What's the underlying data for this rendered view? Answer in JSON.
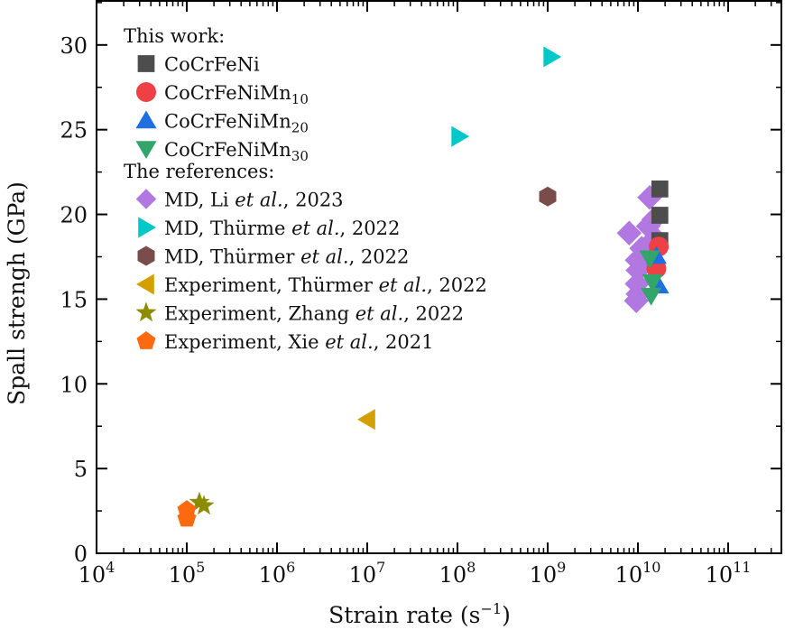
{
  "chart_data": {
    "type": "scatter",
    "title": "",
    "xlabel": "Strain rate (s",
    "xlabel_sup": "−1",
    "xlabel_end": ")",
    "ylabel": "Spall strengh (GPa)",
    "xscale": "log",
    "xlim_log10": [
      4,
      11.59
    ],
    "ylim": [
      0,
      32.6
    ],
    "x_ticks": [
      {
        "base": "10",
        "exp": "4"
      },
      {
        "base": "10",
        "exp": "5"
      },
      {
        "base": "10",
        "exp": "6"
      },
      {
        "base": "10",
        "exp": "7"
      },
      {
        "base": "10",
        "exp": "8"
      },
      {
        "base": "10",
        "exp": "9"
      },
      {
        "base": "10",
        "exp": "10"
      },
      {
        "base": "10",
        "exp": "11"
      }
    ],
    "y_ticks": [
      "0",
      "5",
      "10",
      "15",
      "20",
      "25",
      "30"
    ],
    "grid": false,
    "legend": {
      "placement": "top-left",
      "group_headers": [
        "This work:",
        "The references:"
      ],
      "entries": [
        {
          "group": 0,
          "marker": "square",
          "color": "#4d4d4d",
          "parts": [
            {
              "t": "CoCrFeNi"
            }
          ]
        },
        {
          "group": 0,
          "marker": "circle",
          "color": "#ef4046",
          "parts": [
            {
              "t": "CoCrFeNiMn"
            },
            {
              "t": "10",
              "sub": true
            }
          ]
        },
        {
          "group": 0,
          "marker": "triangle-up",
          "color": "#1f6fe0",
          "parts": [
            {
              "t": "CoCrFeNiMn"
            },
            {
              "t": "20",
              "sub": true
            }
          ]
        },
        {
          "group": 0,
          "marker": "triangle-down",
          "color": "#33a56b",
          "parts": [
            {
              "t": "CoCrFeNiMn"
            },
            {
              "t": "30",
              "sub": true
            }
          ]
        },
        {
          "group": 1,
          "marker": "diamond",
          "color": "#b078e0",
          "parts": [
            {
              "t": "MD, Li "
            },
            {
              "t": "et al.",
              "it": true
            },
            {
              "t": ", 2023"
            }
          ]
        },
        {
          "group": 1,
          "marker": "triangle-right",
          "color": "#00c8c8",
          "parts": [
            {
              "t": "MD, Thürme "
            },
            {
              "t": "et al.",
              "it": true
            },
            {
              "t": ", 2022"
            }
          ]
        },
        {
          "group": 1,
          "marker": "hexagon",
          "color": "#7a4c4c",
          "parts": [
            {
              "t": "MD, Thürmer "
            },
            {
              "t": "et al.",
              "it": true
            },
            {
              "t": ", 2022"
            }
          ]
        },
        {
          "group": 1,
          "marker": "triangle-left",
          "color": "#d4a000",
          "parts": [
            {
              "t": "Experiment, Thürmer "
            },
            {
              "t": "et al.",
              "it": true
            },
            {
              "t": ", 2022"
            }
          ]
        },
        {
          "group": 1,
          "marker": "star",
          "color": "#8c8c00",
          "parts": [
            {
              "t": "Experiment, Zhang "
            },
            {
              "t": "et al.",
              "it": true
            },
            {
              "t": ", 2022"
            }
          ]
        },
        {
          "group": 1,
          "marker": "pentagon",
          "color": "#ff6a10",
          "parts": [
            {
              "t": "Experiment, Xie  "
            },
            {
              "t": "et al.",
              "it": true
            },
            {
              "t": ", 2021"
            }
          ]
        }
      ]
    },
    "series": [
      {
        "name": "MD, Li et al., 2023",
        "marker": "diamond",
        "color": "#b078e0",
        "points": [
          [
            13500000000.0,
            21.0
          ],
          [
            8000000000.0,
            18.9
          ],
          [
            15000000000.0,
            19.7
          ],
          [
            13000000000.0,
            19.3
          ],
          [
            15500000000.0,
            18.6
          ],
          [
            11000000000.0,
            18.0
          ],
          [
            9800000000.0,
            17.3
          ],
          [
            12000000000.0,
            17.2
          ],
          [
            10000000000.0,
            16.7
          ],
          [
            9800000000.0,
            15.9
          ],
          [
            10000000000.0,
            15.3
          ],
          [
            9600000000.0,
            14.9
          ]
        ]
      },
      {
        "name": "CoCrFeNi",
        "marker": "square",
        "color": "#4d4d4d",
        "points": [
          [
            17500000000.0,
            21.5
          ],
          [
            17500000000.0,
            19.95
          ],
          [
            17500000000.0,
            18.45
          ]
        ]
      },
      {
        "name": "CoCrFeNiMn10",
        "marker": "circle",
        "color": "#ef4046",
        "points": [
          [
            17000000000.0,
            18.1
          ],
          [
            16000000000.0,
            16.8
          ]
        ]
      },
      {
        "name": "CoCrFeNiMn20",
        "marker": "triangle-up",
        "color": "#1f6fe0",
        "points": [
          [
            16000000000.0,
            17.55
          ],
          [
            17000000000.0,
            15.8
          ]
        ]
      },
      {
        "name": "CoCrFeNiMn30",
        "marker": "triangle-down",
        "color": "#33a56b",
        "points": [
          [
            13500000000.0,
            17.4
          ],
          [
            14500000000.0,
            16.0
          ],
          [
            14000000000.0,
            15.2
          ]
        ]
      },
      {
        "name": "MD, Thürme et al., 2022",
        "marker": "triangle-right",
        "color": "#00c8c8",
        "points": [
          [
            105000000.0,
            24.6
          ],
          [
            1100000000.0,
            29.3
          ]
        ]
      },
      {
        "name": "MD, Thürmer et al., 2022",
        "marker": "hexagon",
        "color": "#7a4c4c",
        "points": [
          [
            1000000000.0,
            21.05
          ]
        ]
      },
      {
        "name": "Experiment, Thürmer et al., 2022",
        "marker": "triangle-left",
        "color": "#d4a000",
        "points": [
          [
            10000000.0,
            7.9
          ]
        ]
      },
      {
        "name": "Experiment, Zhang et al., 2022",
        "marker": "star",
        "color": "#8c8c00",
        "points": [
          [
            138000.0,
            3.0
          ],
          [
            155000.0,
            2.8
          ]
        ]
      },
      {
        "name": "Experiment, Xie et al., 2021",
        "marker": "pentagon",
        "color": "#ff6a10",
        "points": [
          [
            100000.0,
            2.55
          ],
          [
            100000.0,
            2.05
          ]
        ]
      }
    ]
  }
}
